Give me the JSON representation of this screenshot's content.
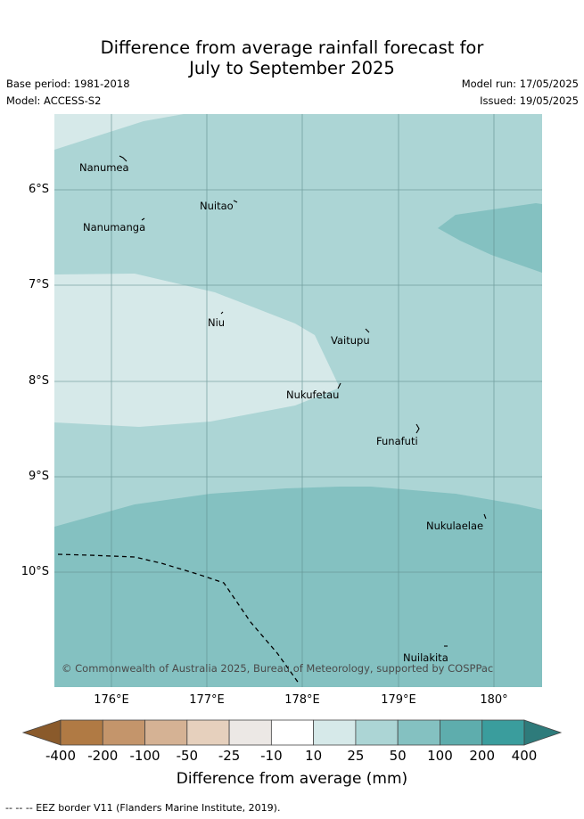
{
  "header": {
    "title_line1": "Difference from average rainfall forecast for",
    "title_line2": "July to September 2025",
    "base_period": "Base period: 1981-2018",
    "model": "Model: ACCESS-S2",
    "model_run": "Model run: 17/05/2025",
    "issued": "Issued: 19/05/2025"
  },
  "map": {
    "region": "Tuvalu",
    "islands": [
      {
        "name": "Nanumea"
      },
      {
        "name": "Nuitao"
      },
      {
        "name": "Nanumanga"
      },
      {
        "name": "Niu"
      },
      {
        "name": "Vaitupu"
      },
      {
        "name": "Nukufetau"
      },
      {
        "name": "Funafuti"
      },
      {
        "name": "Nukulaelae"
      },
      {
        "name": "Nuilakita"
      }
    ],
    "lat_labels": [
      "6°S",
      "7°S",
      "8°S",
      "9°S",
      "10°S"
    ],
    "lon_labels": [
      "176°E",
      "177°E",
      "178°E",
      "179°E",
      "180°"
    ],
    "copyright": "© Commonwealth of Australia 2025, Bureau of Meteorology, supported by COSPPac"
  },
  "colorbar": {
    "title": "Difference from average (mm)",
    "ticks": [
      "-400",
      "-200",
      "-100",
      "-50",
      "-25",
      "-10",
      "10",
      "25",
      "50",
      "100",
      "200",
      "400"
    ],
    "colors": [
      "#8a5a2b",
      "#b07a44",
      "#c4956b",
      "#d5b294",
      "#e6d0bd",
      "#ece8e5",
      "#ffffff",
      "#d6e9e9",
      "#acd5d5",
      "#84c1c1",
      "#5eadad",
      "#3a9d9d",
      "#2e7b7b"
    ]
  },
  "footnote": "-- -- -- EEZ border V11 (Flanders Marine Institute, 2019)."
}
